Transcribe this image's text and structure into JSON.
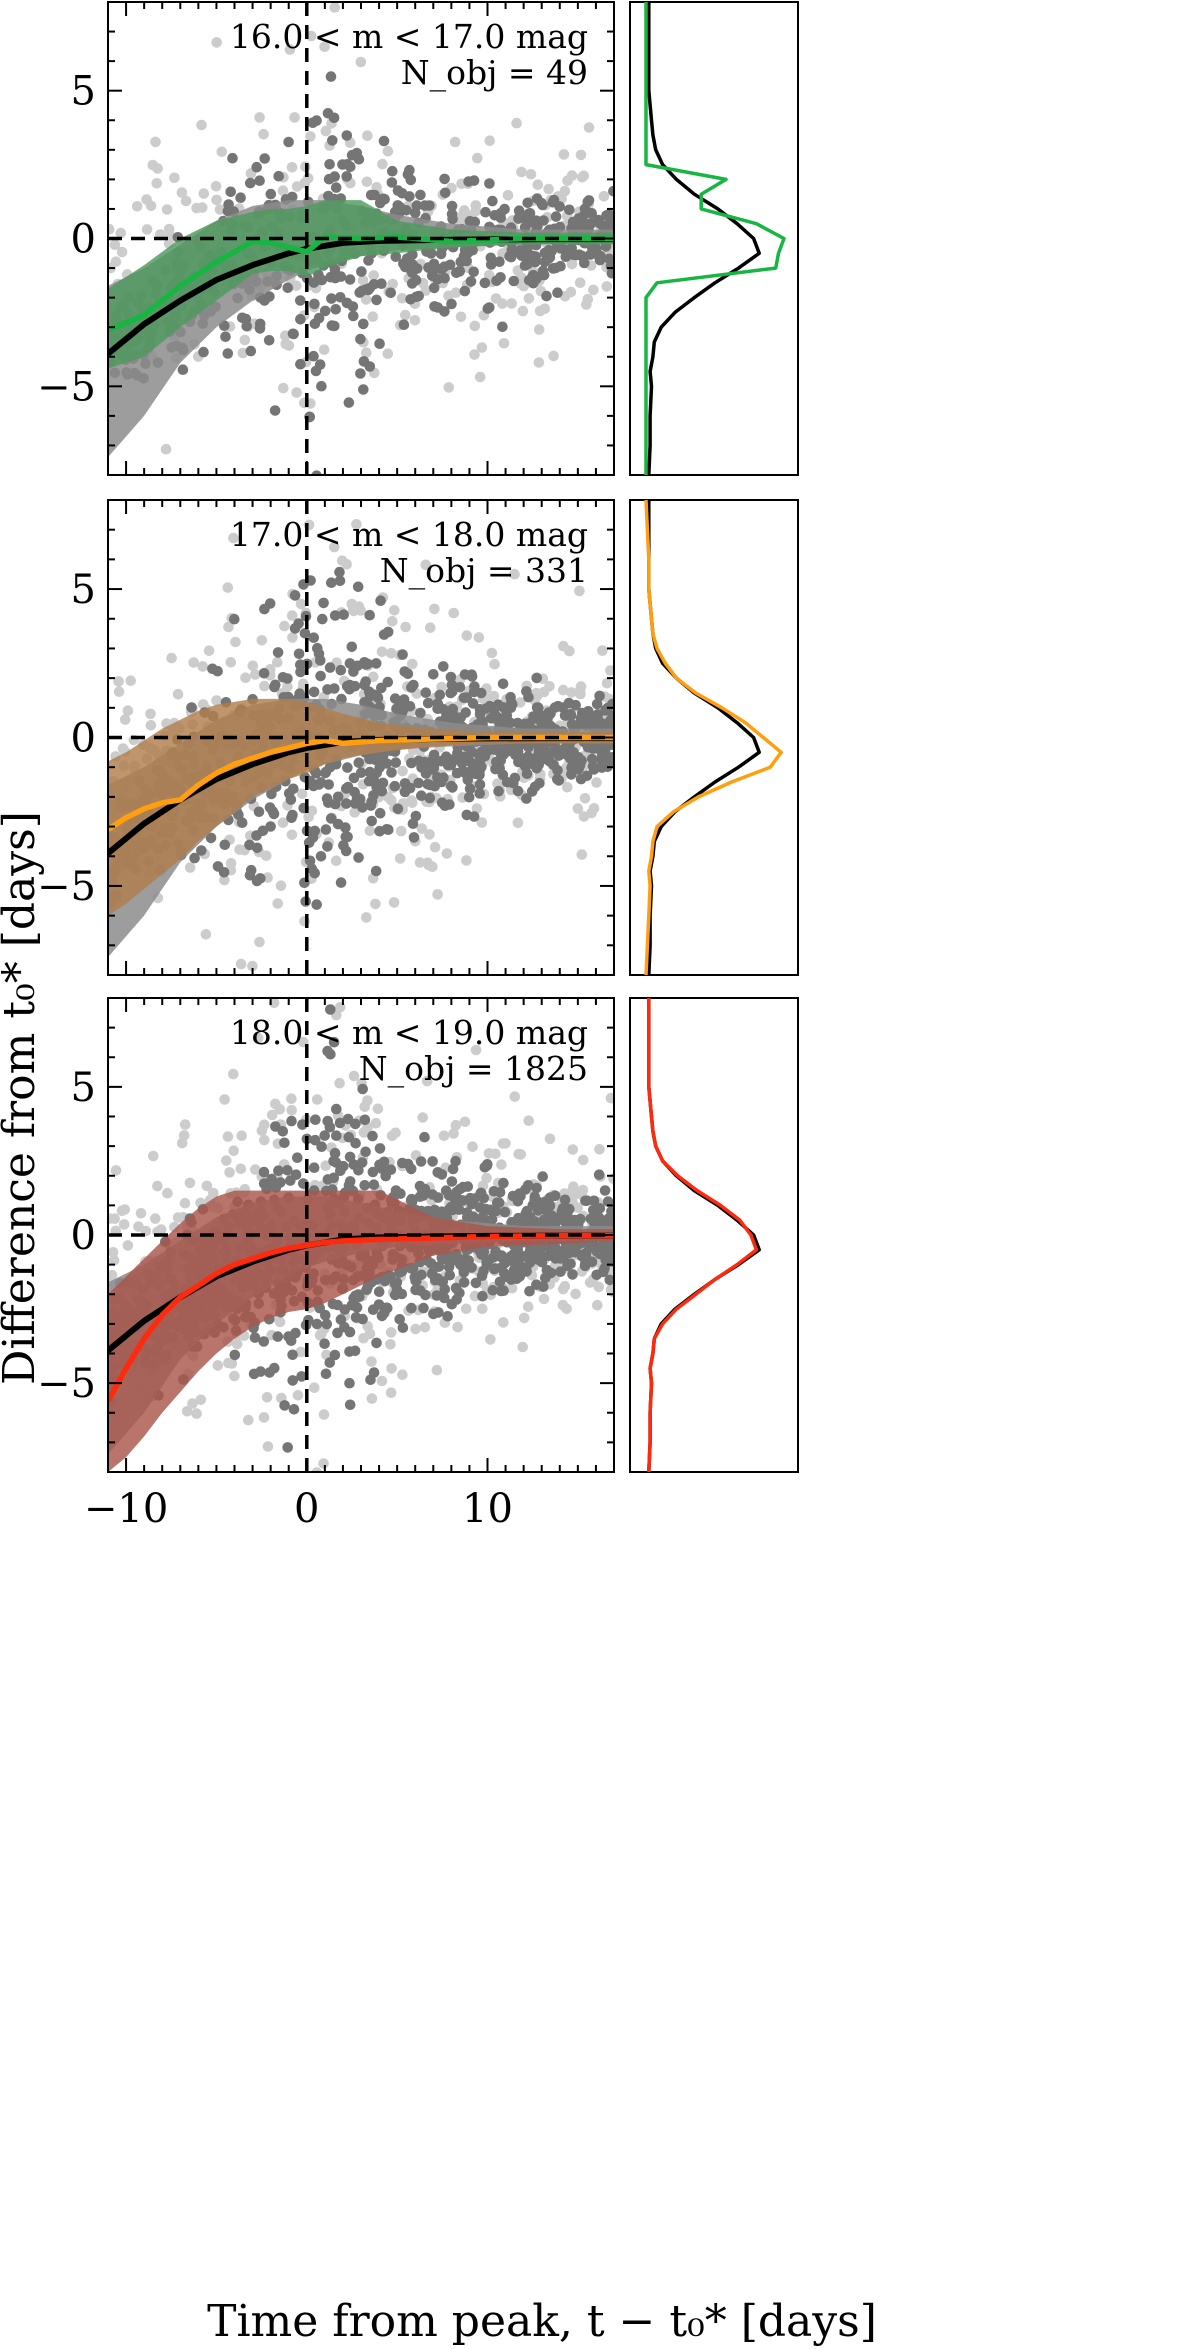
{
  "colors": {
    "light_points": "#cccccc",
    "dark_points": "#757575",
    "band_dark": "#8c8c8c",
    "median_line": "#000000",
    "zero_line": "#000000"
  },
  "figure": {
    "xlabel": "Time from peak, t − t₀* [days]",
    "ylabel": "Difference from t₀* [days]"
  },
  "chart_data": [
    {
      "type": "scatter",
      "title_line1": "16.0 < m < 17.0 mag",
      "title_line2": "N_obj = 49",
      "accent": "#18b543",
      "fill": "#4f9a5f",
      "xlim": [
        -11,
        17
      ],
      "ylim": [
        -8,
        8
      ],
      "xticks": [
        -10,
        0,
        10
      ],
      "yticks": [
        -5,
        0,
        5
      ],
      "ytick_labels": [
        "−5",
        "0",
        "5"
      ],
      "density": 0.55,
      "band_x": [
        -11,
        -9,
        -7,
        -5,
        -3,
        -1,
        0,
        1,
        3,
        5,
        8,
        12,
        17
      ],
      "band_upper": [
        -1.6,
        -1.0,
        -0.2,
        0.6,
        1.1,
        1.3,
        1.3,
        1.3,
        1.1,
        0.8,
        0.5,
        0.3,
        0.3
      ],
      "band_lower": [
        -7.4,
        -6.0,
        -4.2,
        -3.0,
        -2.1,
        -1.4,
        -1.1,
        -0.9,
        -0.6,
        -0.4,
        -0.3,
        -0.2,
        -0.2
      ],
      "median_x": [
        -11,
        -9,
        -7,
        -5,
        -3,
        -1,
        0,
        2,
        4,
        7,
        10,
        14,
        17
      ],
      "median_y": [
        -3.9,
        -2.9,
        -2.1,
        -1.4,
        -0.9,
        -0.5,
        -0.35,
        -0.15,
        -0.08,
        -0.05,
        -0.03,
        -0.02,
        -0.02
      ],
      "series_x": [
        -11,
        -9,
        -7,
        -5,
        -3,
        -2,
        -1,
        0,
        1,
        3,
        5,
        8,
        12,
        17
      ],
      "series_y": [
        -3.1,
        -2.6,
        -1.6,
        -0.8,
        -0.1,
        -0.15,
        -0.3,
        -0.45,
        0.05,
        0.0,
        0.05,
        -0.1,
        0.0,
        0.0
      ],
      "series_band_upper": [
        -1.7,
        -0.9,
        0.0,
        0.6,
        0.9,
        1.0,
        1.0,
        1.1,
        1.3,
        1.3,
        0.6,
        0.3,
        0.2,
        0.2
      ],
      "series_band_lower": [
        -4.4,
        -4.0,
        -3.0,
        -2.1,
        -1.2,
        -1.1,
        -1.1,
        -1.3,
        -1.0,
        -0.6,
        -0.5,
        -0.3,
        -0.2,
        -0.2
      ],
      "hist_y": [
        -8,
        -7,
        -6,
        -5,
        -4.5,
        -4,
        -3.5,
        -3,
        -2.5,
        -2,
        -1.5,
        -1,
        -0.5,
        0,
        0.5,
        1,
        1.5,
        2,
        2.5,
        3,
        3.5,
        4,
        5,
        6,
        7,
        8
      ],
      "hist_black": [
        0.02,
        0.03,
        0.03,
        0.04,
        0.03,
        0.05,
        0.06,
        0.11,
        0.21,
        0.35,
        0.5,
        0.67,
        0.82,
        0.78,
        0.66,
        0.52,
        0.35,
        0.22,
        0.12,
        0.07,
        0.05,
        0.04,
        0.02,
        0.02,
        0.02,
        0.02
      ],
      "hist_series": [
        0.0,
        0.0,
        0.0,
        0.0,
        0.0,
        0.0,
        0.0,
        0.0,
        0.0,
        0.0,
        0.08,
        0.94,
        0.96,
        1.0,
        0.8,
        0.4,
        0.4,
        0.58,
        0.0,
        0.0,
        0.0,
        0.0,
        0.0,
        0.0,
        0.0,
        0.0
      ]
    },
    {
      "type": "scatter",
      "title_line1": "17.0 < m < 18.0 mag",
      "title_line2": "N_obj = 331",
      "accent": "#ff9f0f",
      "fill": "#b07e4c",
      "xlim": [
        -11,
        17
      ],
      "ylim": [
        -8,
        8
      ],
      "xticks": [
        -10,
        0,
        10
      ],
      "yticks": [
        -5,
        0,
        5
      ],
      "ytick_labels": [
        "−5",
        "0",
        "5"
      ],
      "density": 0.8,
      "band_x": [
        -11,
        -9,
        -7,
        -5,
        -3,
        -1,
        0,
        1,
        3,
        5,
        8,
        12,
        17
      ],
      "band_upper": [
        -1.6,
        -1.0,
        -0.2,
        0.6,
        1.1,
        1.3,
        1.3,
        1.3,
        1.1,
        0.8,
        0.5,
        0.3,
        0.3
      ],
      "band_lower": [
        -7.4,
        -6.0,
        -4.2,
        -3.0,
        -2.1,
        -1.4,
        -1.1,
        -0.9,
        -0.6,
        -0.4,
        -0.3,
        -0.2,
        -0.2
      ],
      "median_x": [
        -11,
        -9,
        -7,
        -5,
        -3,
        -1,
        0,
        2,
        4,
        7,
        10,
        14,
        17
      ],
      "median_y": [
        -3.9,
        -2.9,
        -2.1,
        -1.4,
        -0.9,
        -0.5,
        -0.35,
        -0.15,
        -0.08,
        -0.05,
        -0.03,
        -0.02,
        -0.02
      ],
      "series_x": [
        -11,
        -10,
        -9,
        -8,
        -7,
        -6,
        -5,
        -4,
        -3,
        -2,
        -1,
        0,
        1,
        2,
        4,
        7,
        10,
        14,
        17
      ],
      "series_y": [
        -3.1,
        -2.7,
        -2.4,
        -2.2,
        -2.1,
        -1.6,
        -1.2,
        -0.9,
        -0.7,
        -0.5,
        -0.35,
        -0.2,
        -0.1,
        -0.2,
        -0.1,
        -0.05,
        0.0,
        0.0,
        0.0
      ],
      "series_band_upper": [
        -0.8,
        -0.5,
        -0.1,
        0.3,
        0.6,
        0.9,
        1.1,
        1.2,
        1.3,
        1.3,
        1.3,
        1.2,
        1.0,
        0.8,
        0.5,
        0.3,
        0.2,
        0.2,
        0.2
      ],
      "series_band_lower": [
        -6.0,
        -5.6,
        -5.1,
        -4.6,
        -4.1,
        -3.5,
        -3.0,
        -2.5,
        -2.0,
        -1.7,
        -1.4,
        -1.2,
        -0.9,
        -0.7,
        -0.5,
        -0.3,
        -0.2,
        -0.2,
        -0.2
      ],
      "hist_y": [
        -8,
        -7,
        -6,
        -5,
        -4.5,
        -4,
        -3.5,
        -3,
        -2.5,
        -2,
        -1.5,
        -1,
        -0.5,
        0,
        0.5,
        1,
        1.5,
        2,
        2.5,
        3,
        3.5,
        4,
        5,
        6,
        7,
        8
      ],
      "hist_black": [
        0.02,
        0.03,
        0.03,
        0.04,
        0.03,
        0.05,
        0.06,
        0.11,
        0.21,
        0.35,
        0.5,
        0.67,
        0.82,
        0.78,
        0.66,
        0.52,
        0.35,
        0.22,
        0.12,
        0.07,
        0.05,
        0.04,
        0.02,
        0.02,
        0.02,
        0.02
      ],
      "hist_series": [
        0.0,
        0.01,
        0.02,
        0.03,
        0.02,
        0.04,
        0.05,
        0.08,
        0.2,
        0.38,
        0.62,
        0.9,
        0.98,
        0.85,
        0.72,
        0.55,
        0.36,
        0.22,
        0.14,
        0.08,
        0.05,
        0.04,
        0.02,
        0.02,
        0.01,
        0.0
      ]
    },
    {
      "type": "scatter",
      "title_line1": "18.0 < m < 19.0 mag",
      "title_line2": "N_obj = 1825",
      "accent": "#ff2a0e",
      "fill": "#a9574a",
      "xlim": [
        -11,
        17
      ],
      "ylim": [
        -8,
        8
      ],
      "xticks": [
        -10,
        0,
        10
      ],
      "yticks": [
        -5,
        0,
        5
      ],
      "ytick_labels": [
        "−5",
        "0",
        "5"
      ],
      "density": 1.0,
      "band_x": [
        -11,
        -9,
        -7,
        -5,
        -3,
        -1,
        0,
        1,
        3,
        5,
        8,
        12,
        17
      ],
      "band_upper": [
        -1.6,
        -1.0,
        -0.2,
        0.6,
        1.1,
        1.3,
        1.3,
        1.3,
        1.1,
        0.8,
        0.5,
        0.3,
        0.3
      ],
      "band_lower": [
        -7.4,
        -6.0,
        -4.2,
        -3.0,
        -2.1,
        -1.4,
        -1.1,
        -0.9,
        -0.6,
        -0.4,
        -0.3,
        -0.2,
        -0.2
      ],
      "median_x": [
        -11,
        -9,
        -7,
        -5,
        -3,
        -1,
        0,
        2,
        4,
        7,
        10,
        14,
        17
      ],
      "median_y": [
        -3.9,
        -2.9,
        -2.1,
        -1.4,
        -0.9,
        -0.5,
        -0.35,
        -0.15,
        -0.08,
        -0.05,
        -0.03,
        -0.02,
        -0.02
      ],
      "series_x": [
        -11,
        -10,
        -9,
        -8,
        -7,
        -6,
        -5,
        -4,
        -3,
        -2,
        -1,
        0,
        1,
        2,
        4,
        7,
        10,
        14,
        17
      ],
      "series_y": [
        -5.6,
        -4.5,
        -3.5,
        -2.7,
        -2.1,
        -1.7,
        -1.3,
        -1.0,
        -0.8,
        -0.6,
        -0.45,
        -0.35,
        -0.25,
        -0.2,
        -0.15,
        -0.1,
        -0.05,
        -0.02,
        -0.02
      ],
      "series_band_upper": [
        -2.0,
        -1.4,
        -0.8,
        -0.2,
        0.4,
        0.9,
        1.3,
        1.5,
        1.5,
        1.5,
        1.5,
        1.5,
        1.5,
        1.5,
        1.5,
        0.6,
        0.3,
        0.2,
        0.2
      ],
      "series_band_lower": [
        -8.0,
        -7.5,
        -6.8,
        -6.0,
        -5.3,
        -4.6,
        -4.0,
        -3.5,
        -3.1,
        -2.8,
        -2.6,
        -2.5,
        -2.3,
        -2.0,
        -1.4,
        -0.7,
        -0.4,
        -0.3,
        -0.2
      ],
      "hist_y": [
        -8,
        -7,
        -6,
        -5,
        -4.5,
        -4,
        -3.5,
        -3,
        -2.5,
        -2,
        -1.5,
        -1,
        -0.5,
        0,
        0.5,
        1,
        1.5,
        2,
        2.5,
        3,
        3.5,
        4,
        5,
        6,
        7,
        8
      ],
      "hist_black": [
        0.02,
        0.03,
        0.03,
        0.04,
        0.03,
        0.05,
        0.06,
        0.11,
        0.21,
        0.35,
        0.5,
        0.67,
        0.82,
        0.78,
        0.66,
        0.52,
        0.35,
        0.22,
        0.12,
        0.07,
        0.05,
        0.04,
        0.02,
        0.02,
        0.02,
        0.02
      ],
      "hist_series": [
        0.02,
        0.03,
        0.03,
        0.04,
        0.03,
        0.05,
        0.06,
        0.12,
        0.22,
        0.36,
        0.5,
        0.66,
        0.8,
        0.76,
        0.68,
        0.54,
        0.37,
        0.23,
        0.12,
        0.07,
        0.05,
        0.04,
        0.02,
        0.02,
        0.02,
        0.02
      ]
    }
  ]
}
